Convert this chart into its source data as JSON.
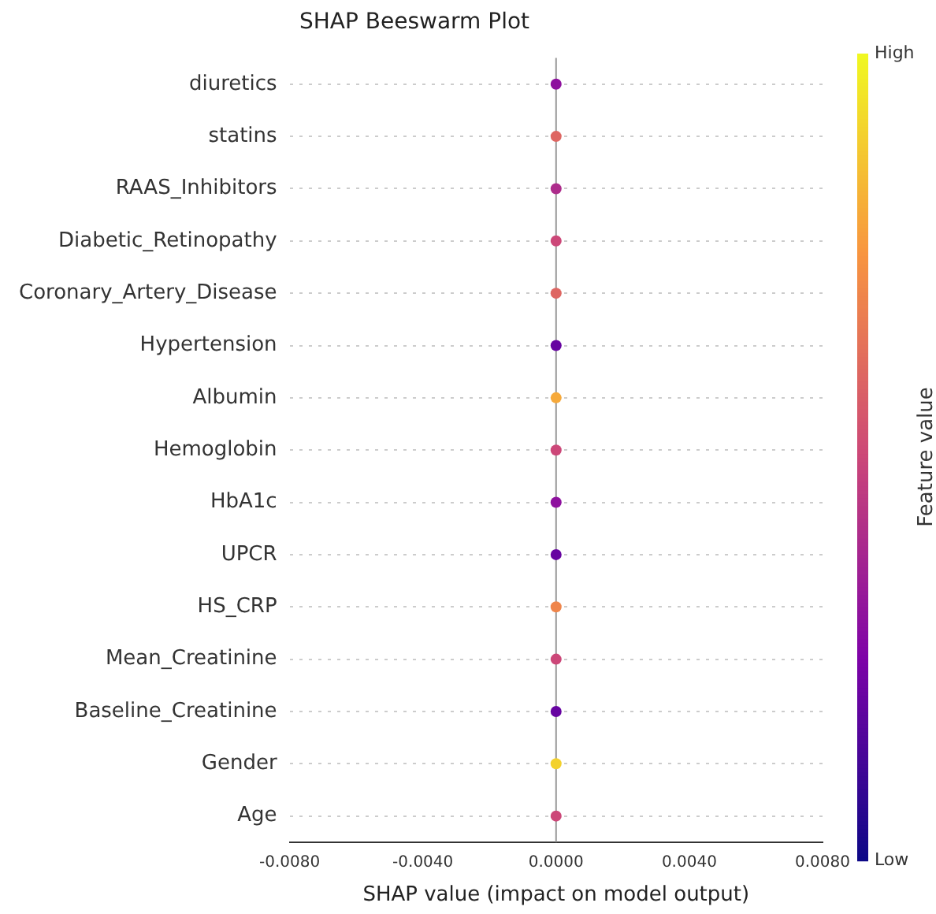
{
  "chart_data": {
    "type": "scatter",
    "title": "SHAP Beeswarm Plot",
    "xlabel": "SHAP value (impact on model output)",
    "clabel": "Feature value",
    "categories": [
      "diuretics",
      "statins",
      "RAAS_Inhibitors",
      "Diabetic_Retinopathy",
      "Coronary_Artery_Disease",
      "Hypertension",
      "Albumin",
      "Hemoglobin",
      "HbA1c",
      "UPCR",
      "HS_CRP",
      "Mean_Creatinine",
      "Baseline_Creatinine",
      "Gender",
      "Age"
    ],
    "series": [
      {
        "values": [
          0,
          0,
          0,
          0,
          0,
          0,
          0,
          0,
          0,
          0,
          0,
          0,
          0,
          0,
          0
        ],
        "cvalues": [
          0.3,
          0.6,
          0.4,
          0.5,
          0.6,
          0.2,
          0.8,
          0.5,
          0.3,
          0.2,
          0.7,
          0.5,
          0.2,
          0.9,
          0.5
        ]
      }
    ],
    "xlim": [
      -0.008,
      0.008
    ],
    "xticks": [
      {
        "value": -0.008,
        "label": "-0.0080"
      },
      {
        "value": -0.004,
        "label": "-0.0040"
      },
      {
        "value": 0,
        "label": "0.0000"
      },
      {
        "value": 0.004,
        "label": "0.0040"
      },
      {
        "value": 0.008,
        "label": "0.0080"
      }
    ],
    "clim": [
      0,
      1
    ],
    "cticks": [
      {
        "value": 0,
        "label": "Low"
      },
      {
        "value": 1,
        "label": "High"
      }
    ],
    "ref_lines": [
      {
        "axis": "x",
        "value": 0,
        "color": "#999999"
      }
    ],
    "orientation": "horizontal",
    "grid": "y",
    "legend": false,
    "marker": "circle"
  }
}
